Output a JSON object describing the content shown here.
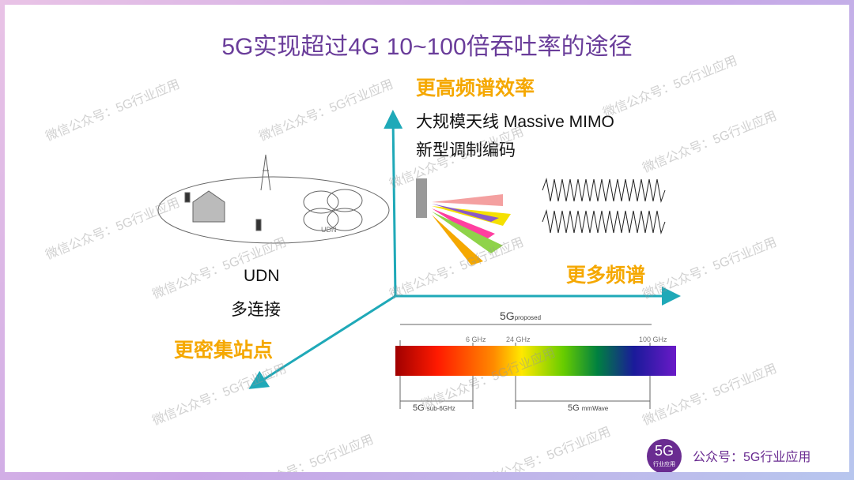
{
  "title": "5G实现超过4G 10~100倍吞吐率的途径",
  "axis_color": "#1fa9b8",
  "top": {
    "heading": "更高频谱效率",
    "line1": "大规模天线 Massive MIMO",
    "line2": "新型调制编码"
  },
  "right": {
    "heading": "更多频谱"
  },
  "left": {
    "heading": "更密集站点",
    "line1": "UDN",
    "line2": "多连接"
  },
  "spectrum": {
    "proposed": "5G",
    "proposed_sub": "proposed",
    "f1": "6 GHz",
    "f2": "24 GHz",
    "f3": "100 GHz",
    "sub6": "5G",
    "sub6_sub": "sub-6GHz",
    "mm": "5G",
    "mm_sub": "mmWave"
  },
  "udn_diagram": {
    "label_udn": "UDN"
  },
  "footer": {
    "logo_main": "5G",
    "logo_sub": "行业应用",
    "text": "公众号：5G行业应用"
  },
  "watermark": "微信公众号：5G行业应用"
}
